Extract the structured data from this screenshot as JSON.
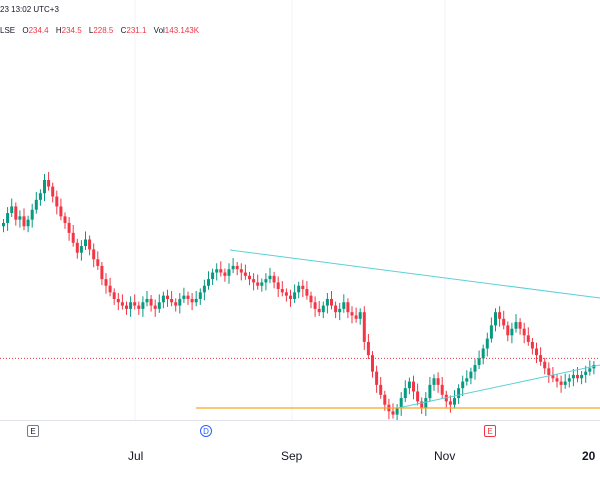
{
  "header": {
    "date_time": "23 13:02 UTC+3",
    "exchange_fragment": "LSE",
    "open_label": "O",
    "open_value": "234.4",
    "high_label": "H",
    "high_value": "234.5",
    "low_label": "L",
    "low_value": "228.5",
    "close_label": "C",
    "close_value": "231.1",
    "volume_label": "Vol",
    "volume_value": "143.143K"
  },
  "time_axis": {
    "labels": [
      {
        "key": "jul",
        "text": "Jul"
      },
      {
        "key": "sep",
        "text": "Sep"
      },
      {
        "key": "nov",
        "text": "Nov"
      },
      {
        "key": "next",
        "text": "20"
      }
    ]
  },
  "events": [
    {
      "key": "earnings1",
      "text": "E"
    },
    {
      "key": "dividend",
      "text": "D"
    },
    {
      "key": "earnings2",
      "text": "E"
    }
  ],
  "colors": {
    "up": "#089981",
    "down": "#f23645",
    "trendline": "#5ad1d8",
    "support": "#f5a623",
    "last_price_line": "#f23645"
  },
  "chart_data": {
    "type": "candlestick",
    "series": [
      {
        "name": "",
        "closes": [
          245,
          248,
          250,
          246,
          247,
          244,
          246,
          249,
          252,
          254,
          258,
          256,
          253,
          250,
          247,
          245,
          242,
          239,
          236,
          238,
          240,
          237,
          234,
          232,
          228,
          226,
          224,
          222,
          221,
          220,
          219,
          221,
          220,
          219,
          221,
          222,
          220,
          219,
          221,
          223,
          222,
          221,
          220,
          222,
          223,
          222,
          221,
          222,
          224,
          226,
          228,
          230,
          231,
          230,
          229,
          231,
          232,
          231,
          230,
          229,
          228,
          227,
          226,
          227,
          228,
          229,
          227,
          225,
          224,
          223,
          222,
          224,
          226,
          225,
          223,
          221,
          219,
          218,
          220,
          222,
          220,
          218,
          219,
          221,
          218,
          217,
          216,
          218,
          209,
          205,
          200,
          196,
          193,
          190,
          188,
          187,
          189,
          192,
          195,
          197,
          194,
          191,
          189,
          192,
          196,
          198,
          196,
          193,
          191,
          190,
          192,
          195,
          197,
          198,
          200,
          202,
          204,
          207,
          210,
          214,
          218,
          216,
          214,
          211,
          213,
          215,
          213,
          211,
          209,
          207,
          205,
          203,
          201,
          199,
          198,
          197,
          196,
          197,
          198,
          199,
          198,
          199,
          200,
          201,
          202
        ]
      }
    ],
    "annotations": {
      "support_level": 189,
      "last_price_level": 204
    }
  }
}
